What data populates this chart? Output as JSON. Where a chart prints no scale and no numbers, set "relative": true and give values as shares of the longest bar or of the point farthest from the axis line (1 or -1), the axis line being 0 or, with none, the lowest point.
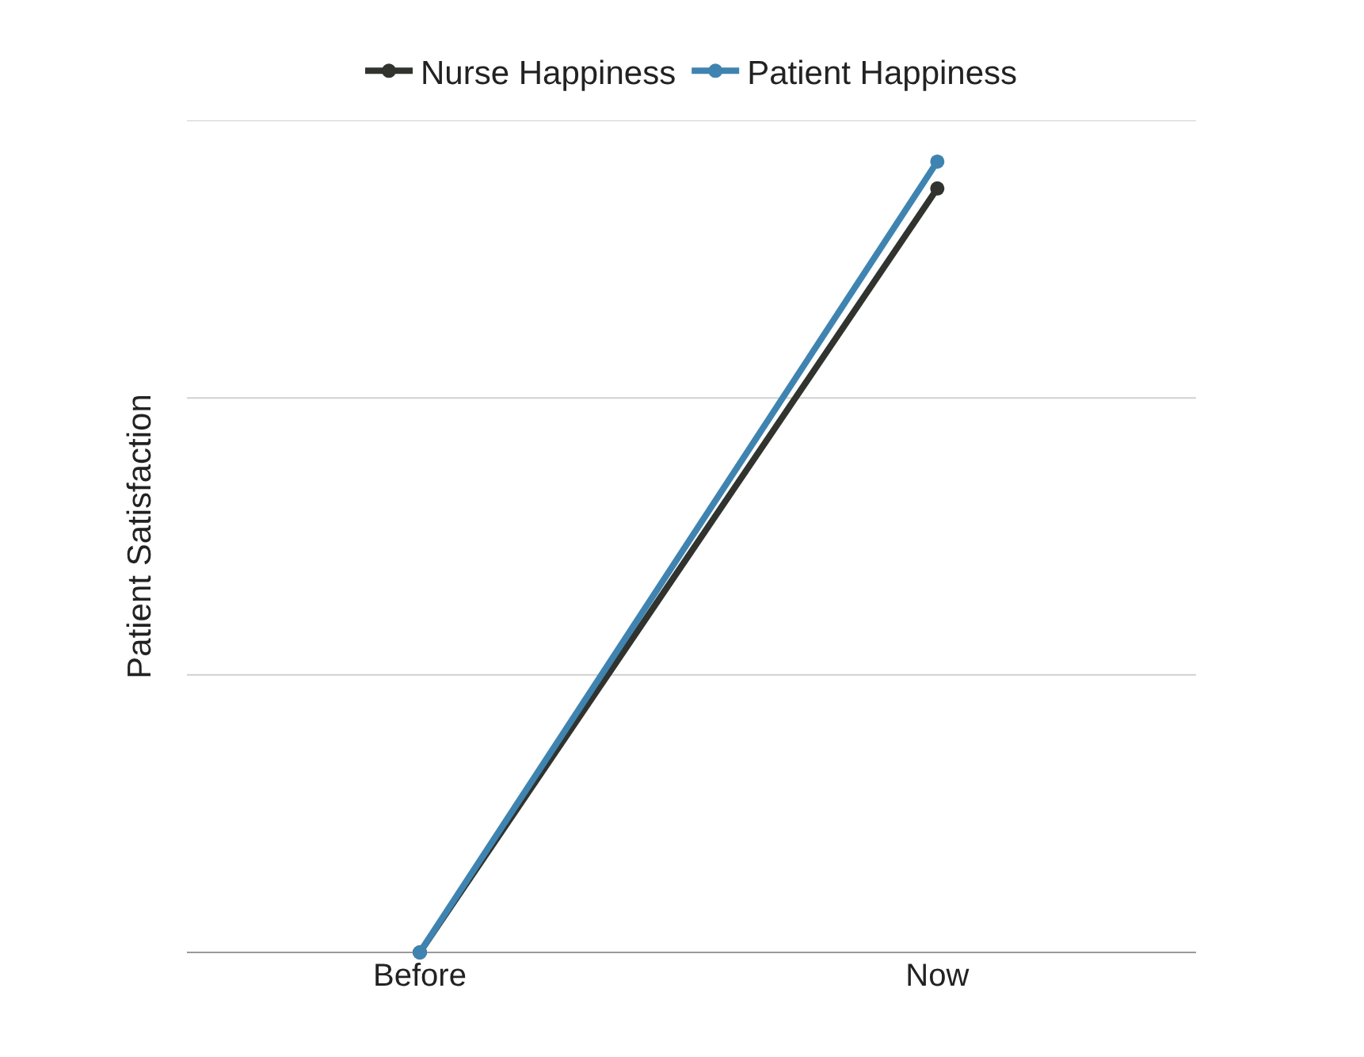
{
  "chart_data": {
    "type": "line",
    "ylabel": "Patient Satisfaction",
    "categories": [
      "Before",
      "Now"
    ],
    "relative": true,
    "series": [
      {
        "name": "Nurse Happiness",
        "color": "#30332e",
        "values": [
          0,
          0.966
        ]
      },
      {
        "name": "Patient Happiness",
        "color": "#3f84b1",
        "values": [
          0,
          1
        ]
      }
    ],
    "ref_lines": [
      {
        "axis": "y",
        "value": 0.351,
        "color": "#d0d0d0"
      },
      {
        "axis": "y",
        "value": 0.701,
        "color": "#d0d0d0"
      },
      {
        "axis": "y",
        "value": 1.052,
        "color": "#d0d0d0"
      }
    ],
    "legend": "top",
    "marker": "circle",
    "line_style": "solid"
  }
}
